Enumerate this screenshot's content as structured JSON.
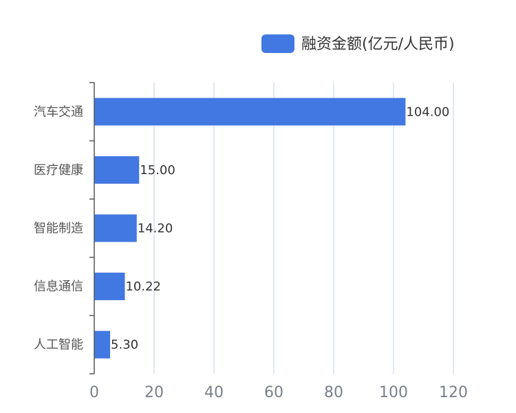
{
  "chart_data": {
    "type": "bar",
    "orientation": "horizontal",
    "categories": [
      "汽车交通",
      "医疗健康",
      "智能制造",
      "信息通信",
      "人工智能"
    ],
    "series": [
      {
        "name": "融资金额(亿元/人民币)",
        "values": [
          104.0,
          15.0,
          14.2,
          10.22,
          5.3
        ]
      }
    ],
    "value_labels": [
      "104.00",
      "15.00",
      "14.20",
      "10.22",
      "5.30"
    ],
    "xlim": [
      0,
      120
    ],
    "x_ticks": [
      0,
      20,
      40,
      60,
      80,
      100,
      120
    ],
    "grid": true,
    "legend_position": "top-right",
    "colors": {
      "bar": "#4278e2",
      "axis": "#555555",
      "grid": "#d6e0ef"
    }
  }
}
